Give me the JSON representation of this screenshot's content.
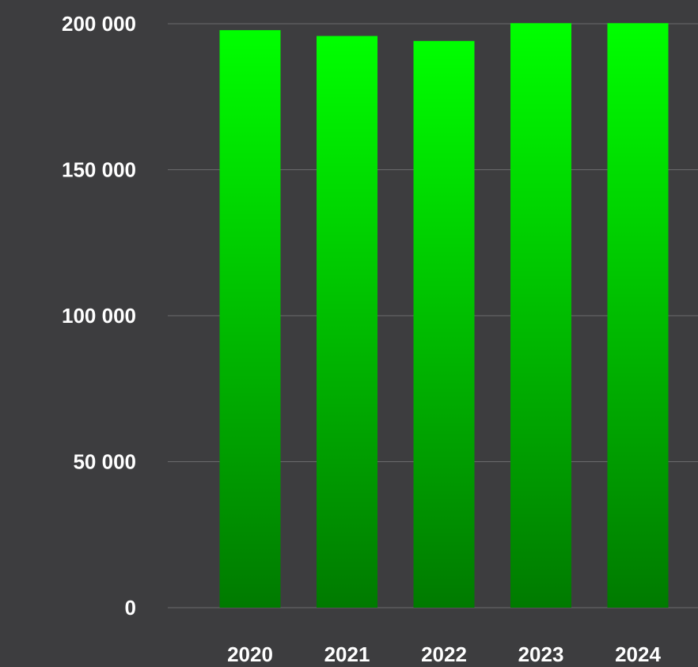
{
  "chart_data": {
    "type": "bar",
    "categories": [
      "2020",
      "2021",
      "2022",
      "2023",
      "2024"
    ],
    "series": [
      {
        "values": [
          197800,
          195800,
          194100,
          200200,
          200200
        ]
      }
    ],
    "yticks": [
      {
        "value": 0,
        "label": "0"
      },
      {
        "value": 50000,
        "label": "50 000"
      },
      {
        "value": 100000,
        "label": "100 000"
      },
      {
        "value": 150000,
        "label": "150 000"
      },
      {
        "value": 200000,
        "label": "200 000"
      }
    ],
    "ylim": [
      0,
      200000
    ],
    "grid": true,
    "legend": "none",
    "colors": {
      "background": "#3d3d3f",
      "bar_top": "#00ff00",
      "bar_bottom": "#007a00",
      "grid": "#6a6a6c",
      "text": "#ffffff"
    }
  }
}
